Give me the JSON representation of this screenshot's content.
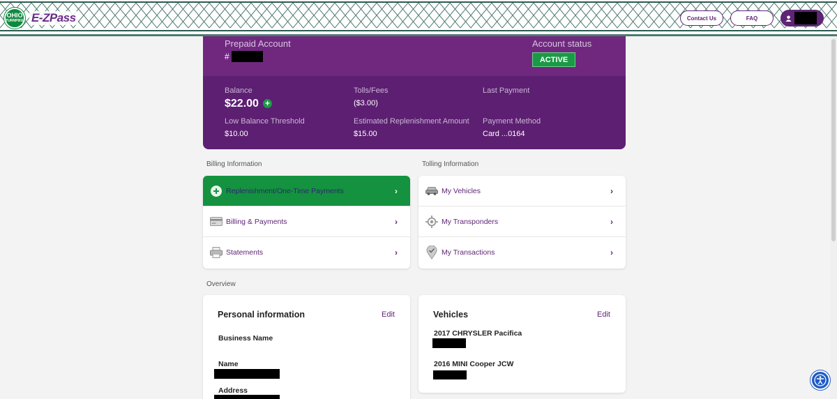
{
  "header": {
    "logo_ohio_line1": "OHIO",
    "logo_ohio_line2": "TURNPIKE",
    "logo_ezpass": "E-ZPass",
    "contact_label": "Contact Us",
    "faq_label": "FAQ",
    "user_icon": "user-icon"
  },
  "account": {
    "type_label": "Prepaid Account",
    "number_prefix": "#",
    "status_label": "Account status",
    "status_value": "ACTIVE",
    "balance_label": "Balance",
    "balance_value": "$22.00",
    "tolls_label": "Tolls/Fees",
    "tolls_value": "($3.00)",
    "last_payment_label": "Last Payment",
    "low_balance_label": "Low Balance Threshold",
    "low_balance_value": "$10.00",
    "replenish_label": "Estimated Replenishment Amount",
    "replenish_value": "$15.00",
    "payment_method_label": "Payment Method",
    "payment_method_value": "Card ...0164"
  },
  "billing": {
    "section_label": "Billing Information",
    "items": [
      {
        "label": "Replenishment/One-Time Payments",
        "icon": "plus-circle-icon"
      },
      {
        "label": "Billing & Payments",
        "icon": "credit-card-icon"
      },
      {
        "label": "Statements",
        "icon": "printer-icon"
      }
    ]
  },
  "tolling": {
    "section_label": "Tolling Information",
    "items": [
      {
        "label": "My Vehicles",
        "icon": "car-icon"
      },
      {
        "label": "My Transponders",
        "icon": "transponder-icon"
      },
      {
        "label": "My Transactions",
        "icon": "map-pin-check-icon"
      }
    ]
  },
  "overview": {
    "section_label": "Overview",
    "personal": {
      "title": "Personal information",
      "edit": "Edit",
      "business_name_label": "Business Name",
      "name_label": "Name",
      "address_label": "Address"
    },
    "vehicles": {
      "title": "Vehicles",
      "edit": "Edit",
      "list": [
        "2017 CHRYSLER Pacifica",
        "2016 MINI Cooper JCW"
      ]
    }
  },
  "colors": {
    "brand_purple": "#5e2475",
    "active_green": "#1a9a46",
    "accessibility_blue": "#1e5bc6"
  }
}
